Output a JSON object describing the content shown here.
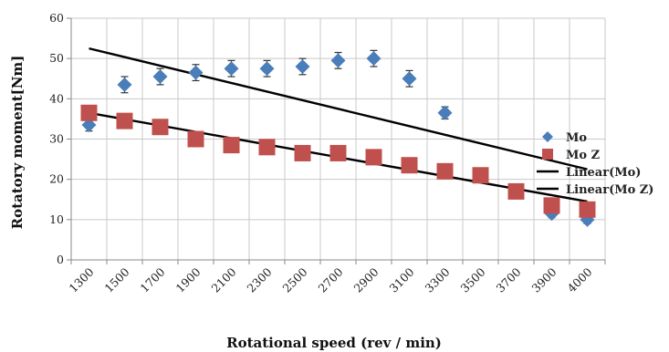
{
  "chart_data": {
    "type": "scatter",
    "x_tick_labels": [
      "1300",
      "1500",
      "1700",
      "1900",
      "2100",
      "2300",
      "2500",
      "2700",
      "2900",
      "3100",
      "3300",
      "3500",
      "3700",
      "3900",
      "4000"
    ],
    "xlabel": "Rotational speed (rev / min)",
    "ylabel": "Rotatory moment[Nm]",
    "ylim": [
      0,
      60
    ],
    "y_ticks": [
      0,
      10,
      20,
      30,
      40,
      50,
      60
    ],
    "y_tick_labels": [
      "0",
      "10",
      "20",
      "30",
      "40",
      "50",
      "60"
    ],
    "grid": true,
    "legend_position": "right",
    "series": [
      {
        "name": "Mo",
        "marker": "diamond",
        "color": "#4a7ebb",
        "x": [
          "1300",
          "1500",
          "1700",
          "1900",
          "2100",
          "2300",
          "2500",
          "2700",
          "2900",
          "3100",
          "3300",
          "3900",
          "4000"
        ],
        "values": [
          33.5,
          43.5,
          45.5,
          46.5,
          47.5,
          47.5,
          48,
          49.5,
          50,
          45,
          36.5,
          11.5,
          10
        ],
        "error": [
          1.5,
          2,
          2,
          2,
          2,
          2,
          2,
          2,
          2,
          2,
          1.5,
          1,
          1
        ]
      },
      {
        "name": "Mo Z",
        "marker": "square",
        "color": "#c0504d",
        "x": [
          "1300",
          "1500",
          "1700",
          "1900",
          "2100",
          "2300",
          "2500",
          "2700",
          "2900",
          "3100",
          "3300",
          "3500",
          "3700",
          "3900",
          "4000"
        ],
        "values": [
          36.5,
          34.5,
          33,
          30,
          28.5,
          28,
          26.5,
          26.5,
          25.5,
          23.5,
          22,
          21,
          17,
          13.5,
          12.5
        ]
      }
    ],
    "trendlines": [
      {
        "name": "Linear(Mo)",
        "of": "Mo",
        "color": "#000000",
        "start": [
          "1300",
          52.5
        ],
        "end": [
          "4000",
          22.5
        ]
      },
      {
        "name": "Linear(Mo Z)",
        "of": "Mo Z",
        "color": "#000000",
        "start": [
          "1300",
          36.5
        ],
        "end": [
          "4000",
          14.5
        ]
      }
    ],
    "legend": [
      "Mo",
      "Mo Z",
      "Linear(Mo)",
      "Linear(Mo Z)"
    ]
  }
}
